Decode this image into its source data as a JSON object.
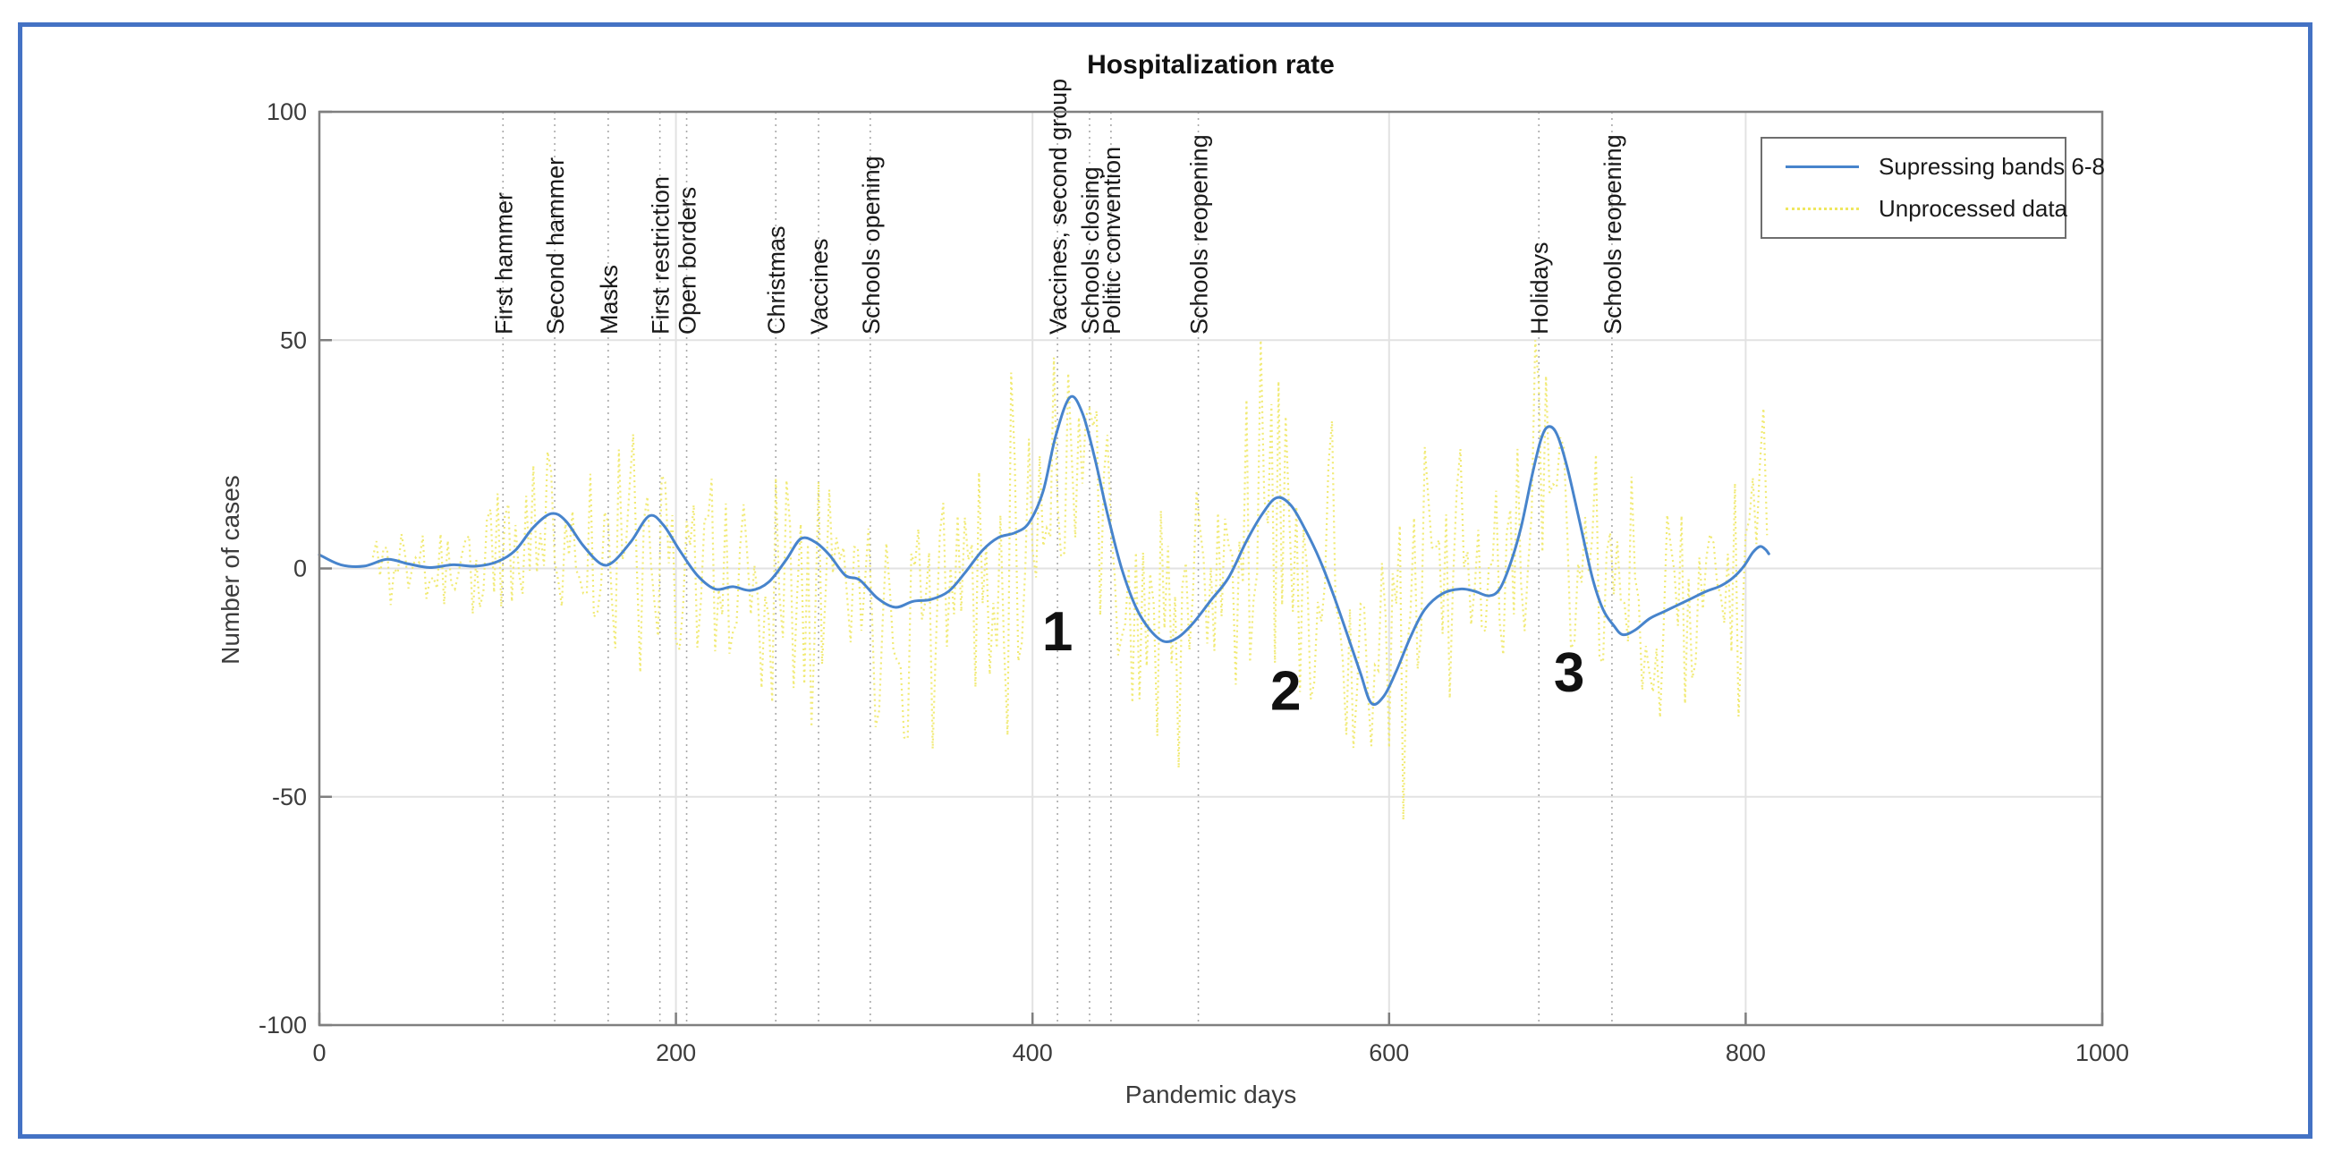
{
  "figure": {
    "border_color": "#4472c4",
    "background": "#ffffff"
  },
  "chart_data": {
    "type": "line",
    "title": "Hospitalization rate",
    "xlabel": "Pandemic days",
    "ylabel": "Number of cases",
    "xlim": [
      0,
      1000
    ],
    "ylim": [
      -100,
      100
    ],
    "xticks": [
      0,
      200,
      400,
      600,
      800,
      1000
    ],
    "yticks": [
      100,
      50,
      0,
      -50,
      -100
    ],
    "grid": true,
    "colors": {
      "smoothed_line": "#4784cc",
      "noise_line": "#f0e96e",
      "gridline": "#e2e2e2",
      "axis": "#7f7f7f",
      "tick_text": "#3c3c3c",
      "event_line": "#aaaaaa",
      "event_text": "#1a1a1a",
      "annotation_text": "#111111"
    },
    "legend": {
      "position": "northeast",
      "entries": [
        "Supressing bands 6-8",
        "Unprocessed data"
      ]
    },
    "series": [
      {
        "name": "Supressing bands 6-8",
        "style": "solid",
        "points": [
          [
            0,
            3
          ],
          [
            12,
            0.8
          ],
          [
            25,
            0.5
          ],
          [
            38,
            2
          ],
          [
            50,
            1
          ],
          [
            62,
            0.2
          ],
          [
            75,
            0.8
          ],
          [
            88,
            0.5
          ],
          [
            100,
            1.5
          ],
          [
            110,
            4
          ],
          [
            120,
            9
          ],
          [
            130,
            12
          ],
          [
            138,
            10.5
          ],
          [
            148,
            5
          ],
          [
            158,
            1
          ],
          [
            165,
            1.5
          ],
          [
            175,
            6
          ],
          [
            185,
            11.5
          ],
          [
            193,
            9.5
          ],
          [
            202,
            4
          ],
          [
            212,
            -1.5
          ],
          [
            222,
            -4.5
          ],
          [
            232,
            -4
          ],
          [
            242,
            -4.8
          ],
          [
            252,
            -3
          ],
          [
            262,
            2
          ],
          [
            270,
            6.5
          ],
          [
            278,
            5.8
          ],
          [
            286,
            3
          ],
          [
            295,
            -1.5
          ],
          [
            303,
            -2.5
          ],
          [
            313,
            -6.5
          ],
          [
            323,
            -8.5
          ],
          [
            333,
            -7.2
          ],
          [
            343,
            -6.8
          ],
          [
            353,
            -5
          ],
          [
            362,
            -1
          ],
          [
            372,
            4
          ],
          [
            381,
            6.8
          ],
          [
            390,
            7.8
          ],
          [
            398,
            10
          ],
          [
            406,
            17
          ],
          [
            413,
            29
          ],
          [
            421,
            37.5
          ],
          [
            428,
            34
          ],
          [
            435,
            24
          ],
          [
            442,
            12
          ],
          [
            450,
            0
          ],
          [
            458,
            -8.5
          ],
          [
            466,
            -13.5
          ],
          [
            474,
            -16
          ],
          [
            482,
            -15
          ],
          [
            490,
            -12
          ],
          [
            500,
            -7
          ],
          [
            510,
            -2
          ],
          [
            520,
            6
          ],
          [
            529,
            12
          ],
          [
            537,
            15.5
          ],
          [
            545,
            13.8
          ],
          [
            553,
            8.5
          ],
          [
            561,
            2
          ],
          [
            569,
            -6
          ],
          [
            577,
            -15
          ],
          [
            584,
            -23
          ],
          [
            590,
            -29.5
          ],
          [
            597,
            -28
          ],
          [
            604,
            -22.5
          ],
          [
            612,
            -15
          ],
          [
            620,
            -9
          ],
          [
            630,
            -5.5
          ],
          [
            640,
            -4.5
          ],
          [
            648,
            -5
          ],
          [
            656,
            -6
          ],
          [
            662,
            -4.5
          ],
          [
            668,
            1
          ],
          [
            674,
            9
          ],
          [
            680,
            20
          ],
          [
            685,
            28
          ],
          [
            689,
            31
          ],
          [
            694,
            29.5
          ],
          [
            700,
            22
          ],
          [
            707,
            10
          ],
          [
            714,
            -2
          ],
          [
            720,
            -9
          ],
          [
            726,
            -12.5
          ],
          [
            731,
            -14.5
          ],
          [
            738,
            -13.5
          ],
          [
            746,
            -11
          ],
          [
            754,
            -9.5
          ],
          [
            762,
            -8
          ],
          [
            770,
            -6.5
          ],
          [
            778,
            -5
          ],
          [
            786,
            -3.8
          ],
          [
            793,
            -2
          ],
          [
            799,
            0.5
          ],
          [
            804,
            3.5
          ],
          [
            808,
            4.8
          ],
          [
            811,
            4.2
          ],
          [
            813,
            3.2
          ]
        ]
      },
      {
        "name": "Unprocessed data",
        "style": "dotted",
        "synthetic_noise": {
          "seed": 11,
          "x_start": 30,
          "x_end": 812,
          "step": 2,
          "base_factor": 0.85,
          "clamp": [
            -57,
            50
          ],
          "amplitude_profile": [
            [
              30,
              5
            ],
            [
              80,
              7
            ],
            [
              120,
              12
            ],
            [
              200,
              14
            ],
            [
              300,
              14
            ],
            [
              420,
              18
            ],
            [
              470,
              16
            ],
            [
              560,
              18
            ],
            [
              620,
              15
            ],
            [
              700,
              16
            ],
            [
              760,
              15
            ],
            [
              812,
              12
            ]
          ]
        }
      }
    ],
    "events": [
      {
        "x": 103,
        "label": "First hammer"
      },
      {
        "x": 132,
        "label": "Second hammer"
      },
      {
        "x": 162,
        "label": "Masks"
      },
      {
        "x": 191,
        "label": "First restriction"
      },
      {
        "x": 206,
        "label": "Open borders"
      },
      {
        "x": 256,
        "label": "Christmas"
      },
      {
        "x": 280,
        "label": "Vaccines"
      },
      {
        "x": 309,
        "label": "Schools opening"
      },
      {
        "x": 414,
        "label": "Vaccines, second group"
      },
      {
        "x": 432,
        "label": "Schools closing"
      },
      {
        "x": 444,
        "label": "Politic convention"
      },
      {
        "x": 493,
        "label": "Schools reopening"
      },
      {
        "x": 684,
        "label": "Holidays"
      },
      {
        "x": 725,
        "label": "Schools reopening"
      }
    ],
    "annotations": [
      {
        "x": 414,
        "y": -14,
        "text": "1"
      },
      {
        "x": 542,
        "y": -27,
        "text": "2"
      },
      {
        "x": 701,
        "y": -23,
        "text": "3"
      }
    ]
  }
}
